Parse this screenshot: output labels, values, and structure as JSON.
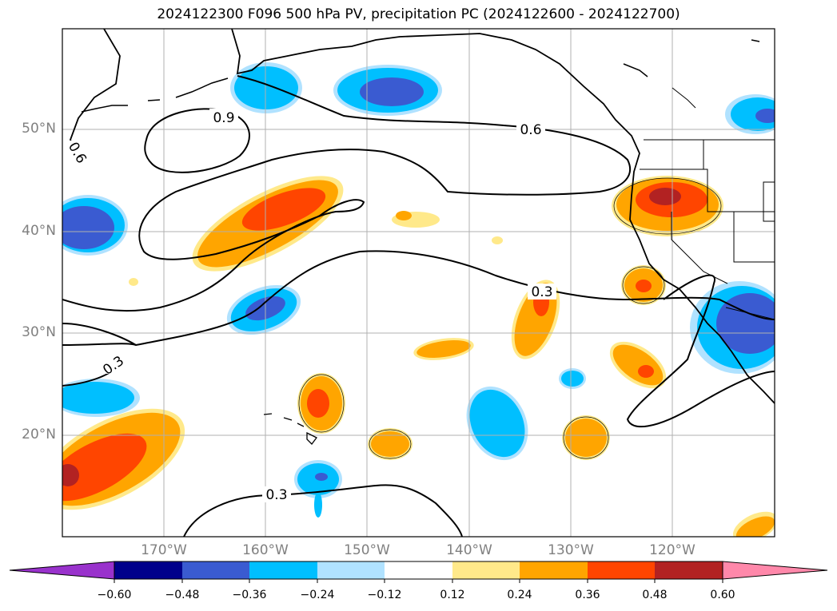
{
  "title": "2024122300 F096 500 hPa PV, precipitation PC (2024122600 - 2024122700)",
  "lat_labels": [
    "50°N",
    "40°N",
    "30°N",
    "20°N"
  ],
  "lon_labels": [
    "170°W",
    "160°W",
    "150°W",
    "140°W",
    "130°W",
    "120°W"
  ],
  "contour_labels": [
    "0.9",
    "0.6",
    "0.6",
    "0.3",
    "0.3",
    "0.3"
  ],
  "colorbar": {
    "ticks": [
      "−0.60",
      "−0.48",
      "−0.36",
      "−0.24",
      "−0.12",
      "0.12",
      "0.24",
      "0.36",
      "0.48",
      "0.60"
    ],
    "colors": [
      "#9932cc",
      "#00008b",
      "#3a5bd1",
      "#00bfff",
      "#b0e2ff",
      "#ffffff",
      "#ffe98a",
      "#ffa500",
      "#ff4500",
      "#b22222",
      "#ff88aa"
    ]
  },
  "colors": {
    "neg_strong": "#3a5bd1",
    "neg_mid": "#00bfff",
    "neg_weak": "#b0e2ff",
    "pos_weak": "#ffe98a",
    "pos_mid": "#ffa500",
    "pos_strong": "#ff4500",
    "pos_max": "#b22222",
    "grid": "#b0b0b0"
  }
}
